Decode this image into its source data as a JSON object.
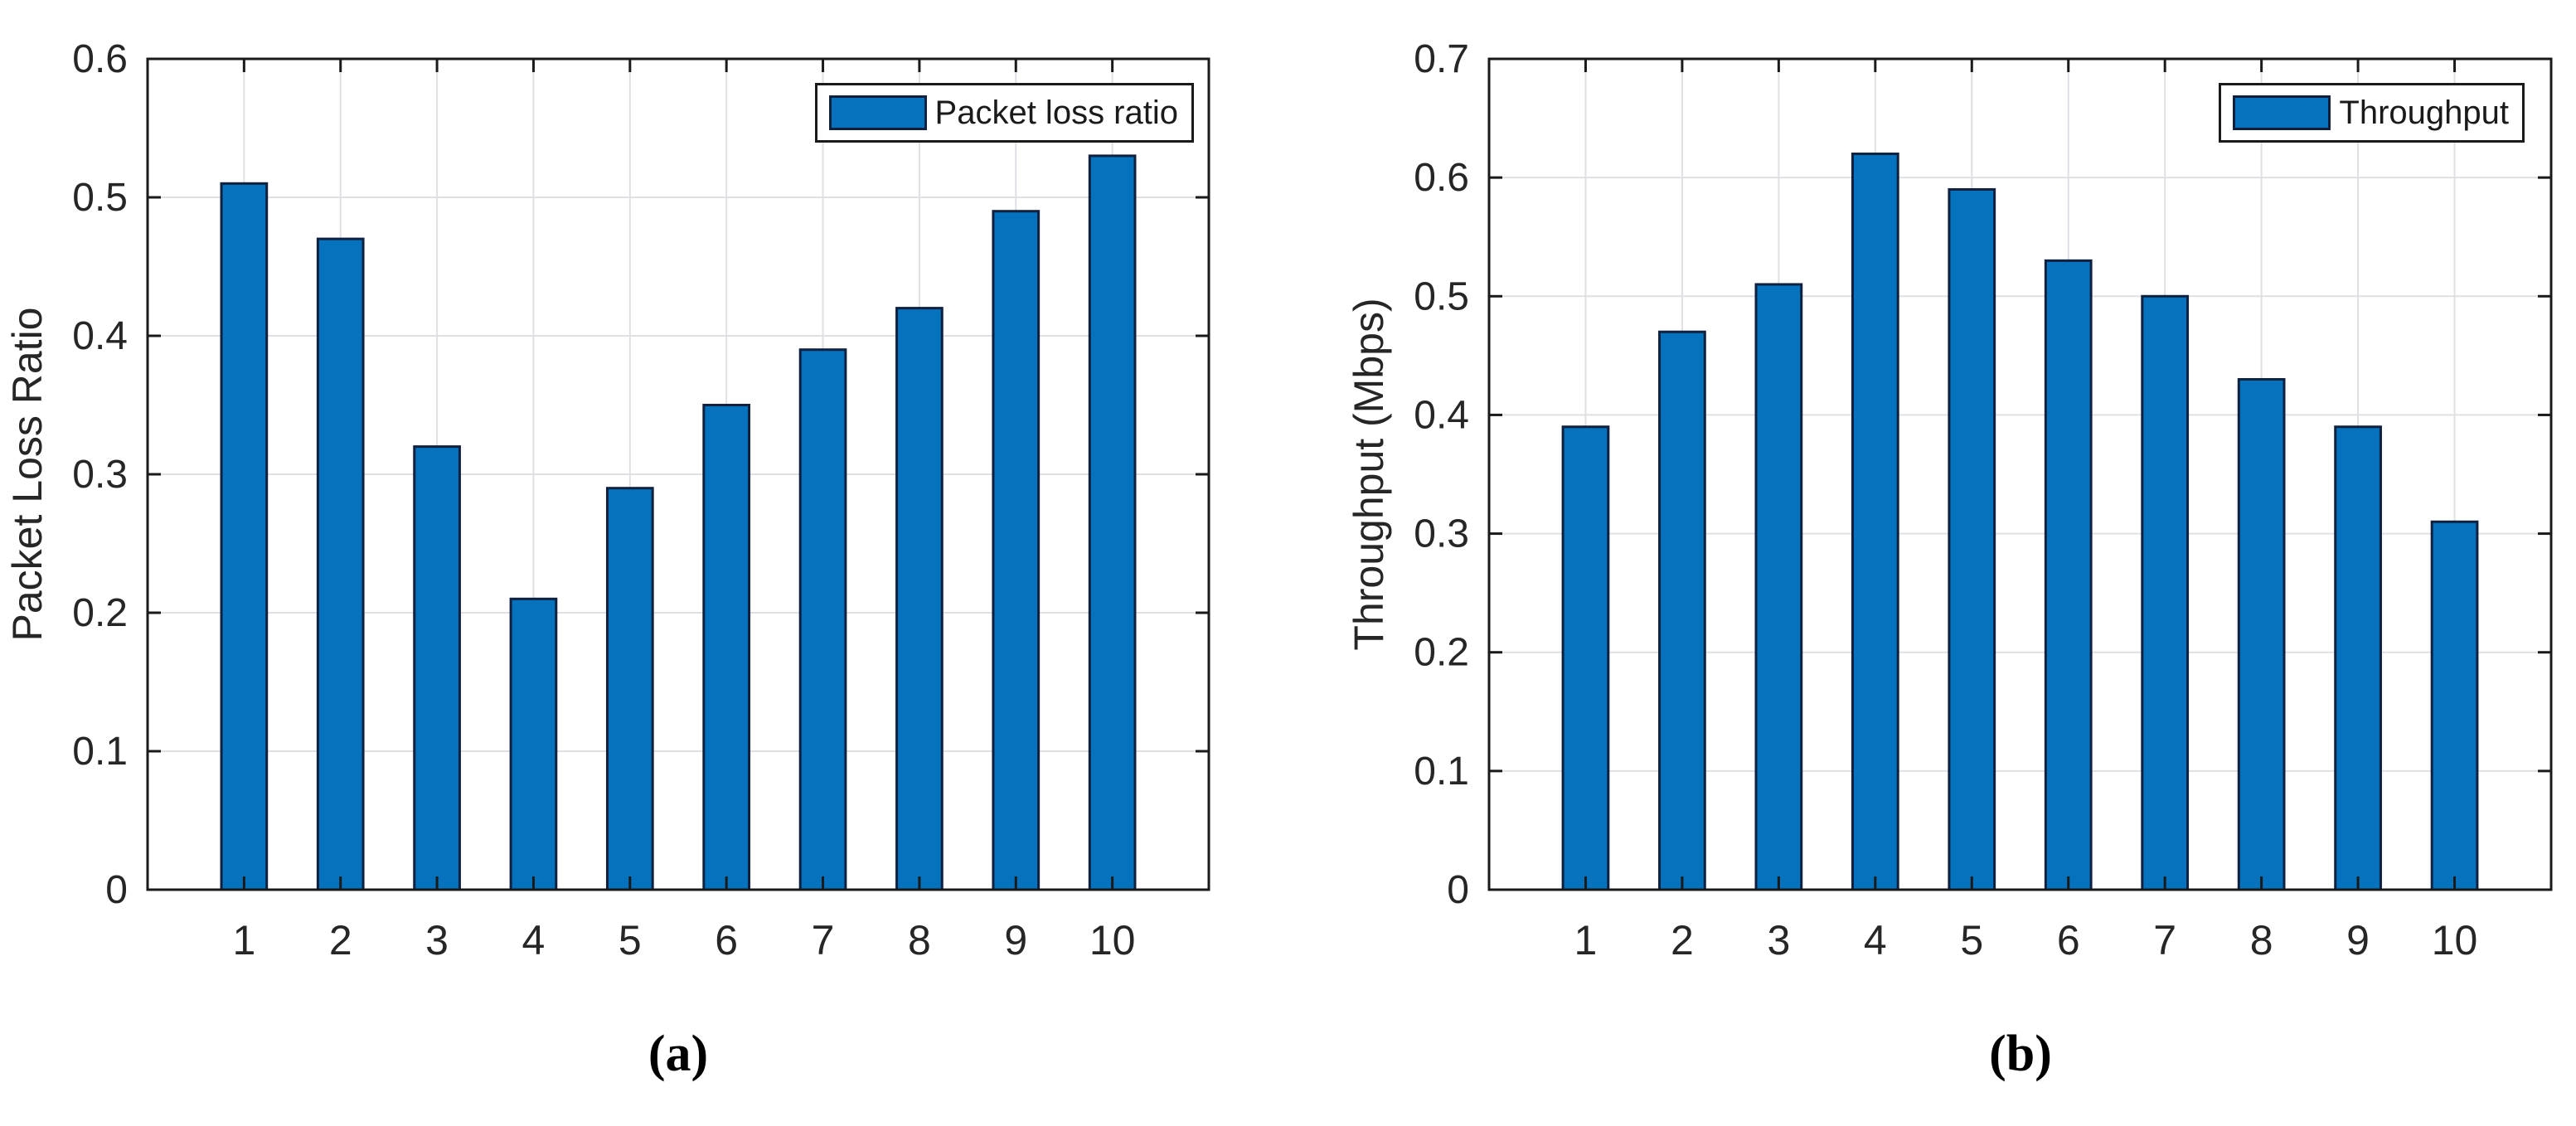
{
  "figure": {
    "background": "#ffffff",
    "panels": [
      "a",
      "b"
    ]
  },
  "colors": {
    "bar_fill": "#0472bd",
    "bar_edge": "#10213f",
    "axis": "#1a1a1a",
    "grid": "#e0e0e4",
    "tick_text": "#262626",
    "legend_text": "#1a1a1a",
    "background": "#ffffff"
  },
  "chart_data": [
    {
      "type": "bar",
      "caption": "(a)",
      "legend": "Packet loss ratio",
      "legend_position": "top-right",
      "title": "",
      "xlabel": "",
      "ylabel": "Packet Loss Ratio",
      "categories": [
        "1",
        "2",
        "3",
        "4",
        "5",
        "6",
        "7",
        "8",
        "9",
        "10"
      ],
      "values": [
        0.51,
        0.47,
        0.32,
        0.21,
        0.29,
        0.35,
        0.39,
        0.42,
        0.49,
        0.53
      ],
      "ylim": [
        0,
        0.6
      ],
      "xlim": [
        0,
        11
      ],
      "yticks": [
        0,
        0.1,
        0.2,
        0.3,
        0.4,
        0.5,
        0.6
      ],
      "ytick_labels": [
        "0",
        "0.1",
        "0.2",
        "0.3",
        "0.4",
        "0.5",
        "0.6"
      ],
      "grid": true
    },
    {
      "type": "bar",
      "caption": "(b)",
      "legend": "Throughput",
      "legend_position": "top-right",
      "title": "",
      "xlabel": "",
      "ylabel": "Throughput (Mbps)",
      "categories": [
        "1",
        "2",
        "3",
        "4",
        "5",
        "6",
        "7",
        "8",
        "9",
        "10"
      ],
      "values": [
        0.39,
        0.47,
        0.51,
        0.62,
        0.59,
        0.53,
        0.5,
        0.43,
        0.39,
        0.31
      ],
      "ylim": [
        0,
        0.7
      ],
      "xlim": [
        0,
        11
      ],
      "yticks": [
        0,
        0.1,
        0.2,
        0.3,
        0.4,
        0.5,
        0.6,
        0.7
      ],
      "ytick_labels": [
        "0",
        "0.1",
        "0.2",
        "0.3",
        "0.4",
        "0.5",
        "0.6",
        "0.7"
      ],
      "grid": true
    }
  ]
}
